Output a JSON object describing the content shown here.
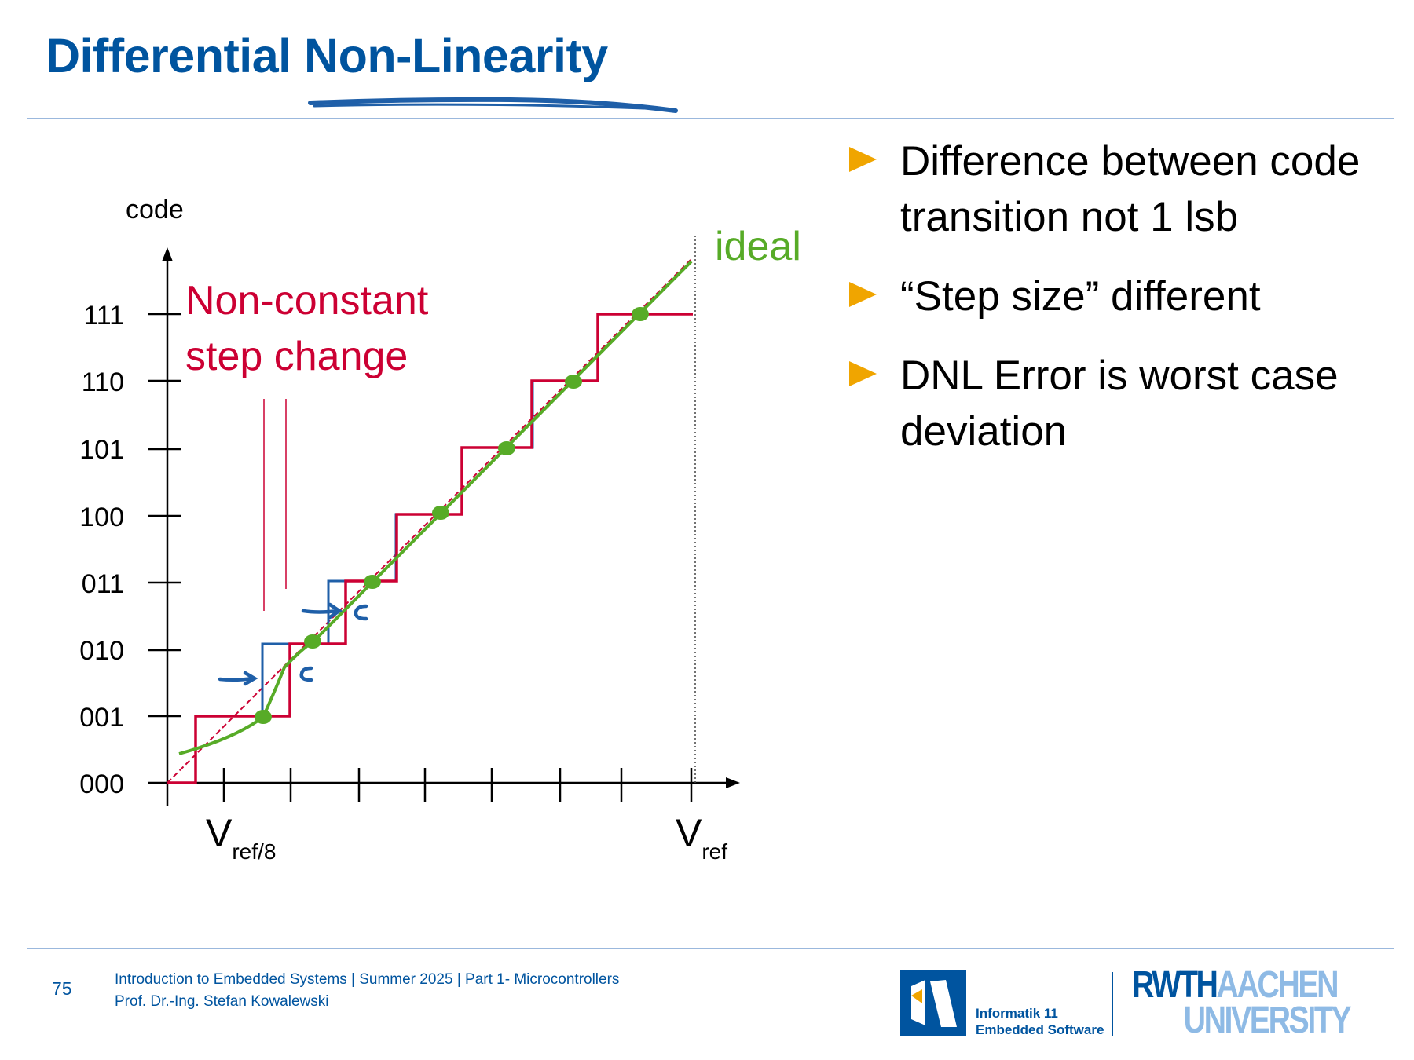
{
  "slide": {
    "title": "Differential Non-Linearity",
    "bullets": [
      "Difference between code transition not 1 lsb",
      "“Step size” different",
      "DNL Error is worst case deviation"
    ]
  },
  "diagram": {
    "y_axis_label": "code",
    "codes": [
      "000",
      "001",
      "010",
      "011",
      "100",
      "101",
      "110",
      "111"
    ],
    "x_label_left": {
      "main": "V",
      "sub": "ref/8"
    },
    "x_label_right": {
      "main": "V",
      "sub": "ref"
    },
    "annotation": [
      "Non-constant",
      "step change"
    ],
    "ideal_label": "ideal"
  },
  "footer": {
    "page_number": "75",
    "line1": "Introduction to Embedded Systems | Summer 2025 | Part 1- Microcontrollers",
    "line2": "Prof. Dr.-Ing. Stefan Kowalewski",
    "logo_line1": "Informatik 11",
    "logo_line2": "Embedded Software",
    "university_a": "RWTH",
    "university_b": "AACHEN",
    "university_c": "UNIVERSITY"
  },
  "colors": {
    "title": "#00549f",
    "accent_red": "#cc0033",
    "accent_blue": "#1f5fa8",
    "accent_green": "#57ab27",
    "bullet": "#f0a500"
  }
}
